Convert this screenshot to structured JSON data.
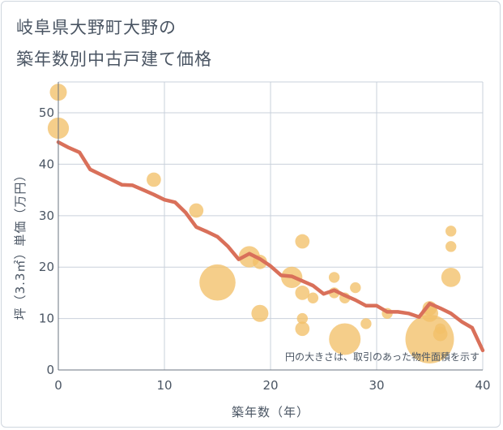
{
  "chart_data": {
    "type": "scatter",
    "title_lines": [
      "岐阜県大野町大野の",
      "築年数別中古戸建て価格"
    ],
    "xlabel": "築年数（年）",
    "ylabel": "坪（3.3㎡）単価（万円）",
    "xlim": [
      0,
      40
    ],
    "ylim": [
      0,
      56
    ],
    "x_ticks": [
      0,
      10,
      20,
      30,
      40
    ],
    "y_ticks": [
      0,
      10,
      20,
      30,
      40,
      50
    ],
    "grid": true,
    "annotation": "円の大きさは、取引のあった物件面積を示す",
    "colors": {
      "bubble": "#f2c069",
      "trend": "#d9705a",
      "grid": "#c9d1db",
      "text": "#4a5563"
    },
    "bubbles": [
      {
        "x": 0,
        "y": 54,
        "size": 3
      },
      {
        "x": 0,
        "y": 47,
        "size": 5
      },
      {
        "x": 9,
        "y": 37,
        "size": 2
      },
      {
        "x": 13,
        "y": 31,
        "size": 2
      },
      {
        "x": 15,
        "y": 17,
        "size": 16
      },
      {
        "x": 18,
        "y": 22,
        "size": 5
      },
      {
        "x": 19,
        "y": 21,
        "size": 2
      },
      {
        "x": 19,
        "y": 11,
        "size": 3
      },
      {
        "x": 22,
        "y": 18,
        "size": 5
      },
      {
        "x": 23,
        "y": 25,
        "size": 2
      },
      {
        "x": 23,
        "y": 15,
        "size": 2
      },
      {
        "x": 23,
        "y": 10,
        "size": 1
      },
      {
        "x": 23,
        "y": 8,
        "size": 2
      },
      {
        "x": 24,
        "y": 14,
        "size": 1
      },
      {
        "x": 26,
        "y": 18,
        "size": 1
      },
      {
        "x": 26,
        "y": 15,
        "size": 1
      },
      {
        "x": 27,
        "y": 14,
        "size": 1
      },
      {
        "x": 27,
        "y": 6,
        "size": 12
      },
      {
        "x": 28,
        "y": 16,
        "size": 1
      },
      {
        "x": 29,
        "y": 9,
        "size": 1
      },
      {
        "x": 31,
        "y": 11,
        "size": 1
      },
      {
        "x": 35,
        "y": 12,
        "size": 2
      },
      {
        "x": 35,
        "y": 11,
        "size": 3
      },
      {
        "x": 35,
        "y": 6,
        "size": 30
      },
      {
        "x": 36,
        "y": 8,
        "size": 1
      },
      {
        "x": 36,
        "y": 7,
        "size": 2
      },
      {
        "x": 37,
        "y": 27,
        "size": 1
      },
      {
        "x": 37,
        "y": 24,
        "size": 1
      },
      {
        "x": 37,
        "y": 18,
        "size": 4
      }
    ],
    "trend": {
      "x": [
        0,
        1,
        2,
        3,
        4,
        5,
        6,
        7,
        8,
        9,
        10,
        11,
        12,
        13,
        14,
        15,
        16,
        17,
        18,
        19,
        20,
        21,
        22,
        23,
        24,
        25,
        26,
        27,
        28,
        29,
        30,
        31,
        32,
        33,
        34,
        35,
        36,
        37,
        38,
        39,
        40
      ],
      "y": [
        44.3,
        43.2,
        42.3,
        39.0,
        38.0,
        37.0,
        36.0,
        35.9,
        35.0,
        34.1,
        33.1,
        32.6,
        30.6,
        27.8,
        26.9,
        25.9,
        24.0,
        21.5,
        22.6,
        21.6,
        20.2,
        18.4,
        18.2,
        17.3,
        16.4,
        14.8,
        15.5,
        14.5,
        13.6,
        12.5,
        12.5,
        11.3,
        11.3,
        11.0,
        10.3,
        12.9,
        12.0,
        11.0,
        9.4,
        8.2,
        3.8
      ]
    }
  }
}
